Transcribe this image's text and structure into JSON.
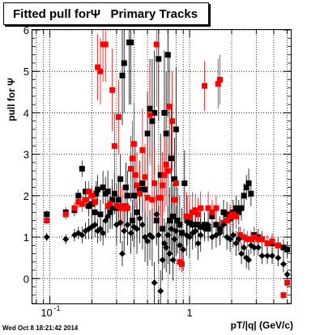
{
  "title": "Fitted pull forΨ   Primary Tracks",
  "timestamp": "Wed Oct  8 18:21:42 2014",
  "chart_data": {
    "type": "scatter",
    "title": "Fitted pull forΨ   Primary Tracks",
    "xlabel": "pT/|q| (GeV/c)",
    "ylabel": "pull for Ψ",
    "x_scale": "log",
    "xlim": [
      0.075,
      5.3
    ],
    "ylim": [
      -0.6,
      6.0
    ],
    "x_tick_labels": [
      {
        "value": 0.1,
        "label": "10",
        "exp": "-1"
      },
      {
        "value": 1,
        "label": "1",
        "exp": ""
      }
    ],
    "y_tick_labels": [
      "0",
      "1",
      "2",
      "3",
      "4",
      "5",
      "6"
    ],
    "grid": true,
    "series": [
      {
        "marker": "square",
        "color": "#000000",
        "points": [
          [
            0.095,
            1.55,
            0.1
          ],
          [
            0.13,
            1.6,
            0.12
          ],
          [
            0.15,
            1.65,
            0.15
          ],
          [
            0.16,
            2.0,
            0.15
          ],
          [
            0.17,
            2.65,
            0.2
          ],
          [
            0.18,
            2.1,
            0.25
          ],
          [
            0.19,
            1.75,
            0.25
          ],
          [
            0.2,
            1.8,
            0.3
          ],
          [
            0.21,
            1.6,
            0.3
          ],
          [
            0.215,
            2.05,
            0.3
          ],
          [
            0.22,
            2.15,
            0.35
          ],
          [
            0.23,
            1.55,
            0.35
          ],
          [
            0.24,
            2.2,
            0.4
          ],
          [
            0.25,
            2.05,
            0.4
          ],
          [
            0.26,
            2.1,
            0.5
          ],
          [
            0.27,
            1.6,
            0.4
          ],
          [
            0.28,
            1.9,
            0.5
          ],
          [
            0.29,
            2.05,
            0.5
          ],
          [
            0.3,
            1.7,
            0.6
          ],
          [
            0.31,
            1.9,
            0.6
          ],
          [
            0.32,
            2.4,
            0.6
          ],
          [
            0.33,
            4.9,
            1.2
          ],
          [
            0.34,
            5.2,
            1.2
          ],
          [
            0.35,
            2.2,
            0.6
          ],
          [
            0.36,
            2.0,
            0.6
          ],
          [
            0.37,
            5.7,
            1.5
          ],
          [
            0.38,
            5.7,
            1.5
          ],
          [
            0.39,
            1.4,
            0.5
          ],
          [
            0.4,
            2.0,
            0.6
          ],
          [
            0.42,
            1.6,
            0.6
          ],
          [
            0.44,
            2.15,
            0.7
          ],
          [
            0.46,
            2.3,
            0.7
          ],
          [
            0.48,
            2.15,
            0.8
          ],
          [
            0.5,
            3.5,
            1.0
          ],
          [
            0.52,
            4.1,
            1.2
          ],
          [
            0.54,
            3.8,
            1.5
          ],
          [
            0.56,
            4.0,
            1.5
          ],
          [
            0.58,
            1.4,
            0.6
          ],
          [
            0.6,
            5.3,
            1.5
          ],
          [
            0.62,
            2.5,
            1.0
          ],
          [
            0.64,
            1.2,
            0.8
          ],
          [
            0.66,
            4.0,
            1.5
          ],
          [
            0.68,
            3.5,
            1.5
          ],
          [
            0.7,
            5.4,
            1.5
          ],
          [
            0.72,
            1.4,
            0.8
          ],
          [
            0.74,
            2.9,
            1.2
          ],
          [
            0.76,
            1.5,
            0.8
          ],
          [
            0.78,
            2.4,
            1.0
          ],
          [
            0.8,
            3.6,
            1.5
          ],
          [
            0.82,
            1.4,
            0.8
          ],
          [
            0.85,
            1.3,
            0.7
          ],
          [
            0.88,
            1.1,
            0.6
          ],
          [
            0.92,
            2.3,
            0.8
          ],
          [
            0.96,
            1.4,
            0.6
          ],
          [
            1.0,
            1.35,
            0.5
          ],
          [
            1.05,
            1.3,
            0.4
          ],
          [
            1.1,
            1.3,
            0.3
          ],
          [
            1.15,
            1.3,
            0.3
          ],
          [
            1.2,
            1.25,
            0.3
          ],
          [
            1.28,
            1.3,
            0.3
          ],
          [
            1.36,
            1.2,
            0.3
          ],
          [
            1.45,
            1.5,
            0.3
          ],
          [
            1.55,
            1.3,
            0.3
          ],
          [
            1.65,
            1.2,
            0.3
          ],
          [
            1.75,
            1.6,
            0.3
          ],
          [
            1.85,
            1.55,
            0.3
          ],
          [
            1.95,
            1.45,
            0.3
          ],
          [
            2.05,
            1.6,
            0.3
          ],
          [
            2.15,
            1.7,
            0.3
          ],
          [
            2.25,
            1.6,
            0.3
          ],
          [
            2.35,
            1.7,
            0.3
          ],
          [
            2.45,
            2.0,
            0.3
          ],
          [
            2.55,
            2.2,
            0.3
          ],
          [
            2.65,
            2.3,
            0.35
          ],
          [
            2.75,
            2.05,
            0.3
          ],
          [
            2.9,
            1.05,
            0.2
          ],
          [
            3.1,
            1.0,
            0.2
          ],
          [
            3.3,
            0.95,
            0.2
          ],
          [
            3.6,
            0.85,
            0.2
          ],
          [
            3.9,
            0.85,
            0.2
          ],
          [
            4.3,
            0.8,
            0.2
          ],
          [
            4.7,
            0.75,
            0.2
          ],
          [
            5.0,
            0.7,
            0.2
          ]
        ]
      },
      {
        "marker": "square",
        "color": "#ff0000",
        "points": [
          [
            0.095,
            1.4,
            0.1
          ],
          [
            0.13,
            1.55,
            0.12
          ],
          [
            0.15,
            1.7,
            0.15
          ],
          [
            0.16,
            1.85,
            0.15
          ],
          [
            0.17,
            1.8,
            0.2
          ],
          [
            0.18,
            1.9,
            0.2
          ],
          [
            0.19,
            2.1,
            0.25
          ],
          [
            0.2,
            2.0,
            0.25
          ],
          [
            0.21,
            1.85,
            0.3
          ],
          [
            0.22,
            5.1,
            0.8
          ],
          [
            0.23,
            5.0,
            0.8
          ],
          [
            0.24,
            5.65,
            0.9
          ],
          [
            0.25,
            5.65,
            0.9
          ],
          [
            0.26,
            1.75,
            0.4
          ],
          [
            0.27,
            1.8,
            0.4
          ],
          [
            0.28,
            4.55,
            1.0
          ],
          [
            0.29,
            3.2,
            0.8
          ],
          [
            0.3,
            1.75,
            0.5
          ],
          [
            0.31,
            3.9,
            0.9
          ],
          [
            0.32,
            1.7,
            0.5
          ],
          [
            0.33,
            1.75,
            0.5
          ],
          [
            0.34,
            1.7,
            0.5
          ],
          [
            0.35,
            1.75,
            0.6
          ],
          [
            0.36,
            1.7,
            0.6
          ],
          [
            0.38,
            2.65,
            0.8
          ],
          [
            0.39,
            2.9,
            0.9
          ],
          [
            0.4,
            3.25,
            1.0
          ],
          [
            0.41,
            2.5,
            0.8
          ],
          [
            0.42,
            2.25,
            0.8
          ],
          [
            0.44,
            2.05,
            0.8
          ],
          [
            0.46,
            3.1,
            1.0
          ],
          [
            0.48,
            2.45,
            0.8
          ],
          [
            0.5,
            1.95,
            0.7
          ],
          [
            0.52,
            3.95,
            1.2
          ],
          [
            0.54,
            1.9,
            0.8
          ],
          [
            0.56,
            2.3,
            0.9
          ],
          [
            0.58,
            5.65,
            1.5
          ],
          [
            0.6,
            1.95,
            0.8
          ],
          [
            0.62,
            1.95,
            0.8
          ],
          [
            0.64,
            2.25,
            0.8
          ],
          [
            0.66,
            2.5,
            0.9
          ],
          [
            0.68,
            2.75,
            1.0
          ],
          [
            0.7,
            2.6,
            1.0
          ],
          [
            0.72,
            4.15,
            1.2
          ],
          [
            0.75,
            3.8,
            1.2
          ],
          [
            0.78,
            1.9,
            0.8
          ],
          [
            0.8,
            2.3,
            0.8
          ],
          [
            0.85,
            0.4,
            0.2
          ],
          [
            0.88,
            0.35,
            0.2
          ],
          [
            0.95,
            1.5,
            0.6
          ],
          [
            1.0,
            1.5,
            0.5
          ],
          [
            1.05,
            1.6,
            0.5
          ],
          [
            1.1,
            1.65,
            0.4
          ],
          [
            1.15,
            1.55,
            0.4
          ],
          [
            1.2,
            1.7,
            0.4
          ],
          [
            1.28,
            4.65,
            0.6
          ],
          [
            1.36,
            1.7,
            0.4
          ],
          [
            1.45,
            1.6,
            0.3
          ],
          [
            1.55,
            1.7,
            0.3
          ],
          [
            1.6,
            4.7,
            0.6
          ],
          [
            1.65,
            4.8,
            0.6
          ],
          [
            1.75,
            1.35,
            0.3
          ],
          [
            1.85,
            1.4,
            0.3
          ],
          [
            1.95,
            1.5,
            0.3
          ],
          [
            2.05,
            1.55,
            0.3
          ],
          [
            2.15,
            1.5,
            0.3
          ],
          [
            2.3,
            1.05,
            0.2
          ],
          [
            2.45,
            1.0,
            0.2
          ],
          [
            2.6,
            0.95,
            0.2
          ],
          [
            2.75,
            0.95,
            0.2
          ],
          [
            2.9,
            1.0,
            0.2
          ],
          [
            3.1,
            0.95,
            0.2
          ],
          [
            3.3,
            0.95,
            0.2
          ],
          [
            3.6,
            0.85,
            0.2
          ],
          [
            3.9,
            0.9,
            0.2
          ],
          [
            4.3,
            0.8,
            0.2
          ],
          [
            4.7,
            -0.4,
            0.1
          ],
          [
            5.0,
            -0.1,
            0.1
          ]
        ]
      },
      {
        "marker": "diamond",
        "color": "#000000",
        "points": [
          [
            0.095,
            1.0,
            0.1
          ],
          [
            0.13,
            0.95,
            0.12
          ],
          [
            0.15,
            1.05,
            0.15
          ],
          [
            0.16,
            1.1,
            0.15
          ],
          [
            0.17,
            1.05,
            0.2
          ],
          [
            0.18,
            1.15,
            0.2
          ],
          [
            0.19,
            1.2,
            0.25
          ],
          [
            0.2,
            1.25,
            0.3
          ],
          [
            0.21,
            1.3,
            0.3
          ],
          [
            0.22,
            1.15,
            0.3
          ],
          [
            0.23,
            1.2,
            0.3
          ],
          [
            0.24,
            1.1,
            0.3
          ],
          [
            0.25,
            1.4,
            0.4
          ],
          [
            0.26,
            1.5,
            0.4
          ],
          [
            0.27,
            1.6,
            0.4
          ],
          [
            0.28,
            1.7,
            0.5
          ],
          [
            0.3,
            1.3,
            0.5
          ],
          [
            0.32,
            1.35,
            0.5
          ],
          [
            0.33,
            0.6,
            0.3
          ],
          [
            0.34,
            1.15,
            0.5
          ],
          [
            0.36,
            1.3,
            0.5
          ],
          [
            0.38,
            1.1,
            0.5
          ],
          [
            0.4,
            1.25,
            0.5
          ],
          [
            0.42,
            1.2,
            0.6
          ],
          [
            0.44,
            1.45,
            0.6
          ],
          [
            0.46,
            1.3,
            0.6
          ],
          [
            0.48,
            1.0,
            0.6
          ],
          [
            0.5,
            0.9,
            0.6
          ],
          [
            0.52,
            1.05,
            0.6
          ],
          [
            0.54,
            1.0,
            0.7
          ],
          [
            0.56,
            -0.1,
            0.5
          ],
          [
            0.58,
            1.55,
            0.7
          ],
          [
            0.6,
            1.05,
            0.7
          ],
          [
            0.62,
            -0.3,
            0.5
          ],
          [
            0.64,
            0.45,
            0.5
          ],
          [
            0.66,
            0.85,
            0.6
          ],
          [
            0.68,
            0.75,
            0.6
          ],
          [
            0.7,
            1.05,
            0.7
          ],
          [
            0.72,
            0.6,
            0.5
          ],
          [
            0.74,
            1.2,
            0.6
          ],
          [
            0.76,
            0.45,
            0.5
          ],
          [
            0.78,
            0.95,
            0.6
          ],
          [
            0.8,
            1.15,
            0.6
          ],
          [
            0.85,
            0.8,
            0.5
          ],
          [
            0.9,
            0.7,
            0.5
          ],
          [
            0.95,
            1.05,
            0.5
          ],
          [
            1.0,
            1.0,
            0.5
          ],
          [
            1.05,
            1.1,
            0.4
          ],
          [
            1.1,
            1.15,
            0.4
          ],
          [
            1.15,
            0.85,
            0.4
          ],
          [
            1.2,
            1.05,
            0.4
          ],
          [
            1.28,
            1.2,
            0.3
          ],
          [
            1.36,
            1.3,
            0.3
          ],
          [
            1.45,
            1.0,
            0.3
          ],
          [
            1.55,
            1.05,
            0.3
          ],
          [
            1.65,
            1.1,
            0.3
          ],
          [
            1.75,
            1.3,
            0.3
          ],
          [
            1.85,
            1.0,
            0.3
          ],
          [
            1.95,
            0.95,
            0.3
          ],
          [
            2.05,
            1.05,
            0.3
          ],
          [
            2.15,
            0.85,
            0.3
          ],
          [
            2.25,
            0.95,
            0.3
          ],
          [
            2.35,
            0.6,
            0.25
          ],
          [
            2.45,
            0.75,
            0.25
          ],
          [
            2.55,
            0.5,
            0.25
          ],
          [
            2.65,
            0.45,
            0.25
          ],
          [
            2.75,
            0.8,
            0.2
          ],
          [
            2.9,
            0.75,
            0.2
          ],
          [
            3.1,
            0.75,
            0.2
          ],
          [
            3.3,
            0.55,
            0.2
          ],
          [
            3.6,
            0.55,
            0.2
          ],
          [
            3.9,
            0.55,
            0.2
          ],
          [
            4.3,
            0.5,
            0.2
          ],
          [
            4.7,
            0.35,
            0.2
          ],
          [
            5.0,
            0.1,
            0.1
          ]
        ]
      }
    ]
  }
}
